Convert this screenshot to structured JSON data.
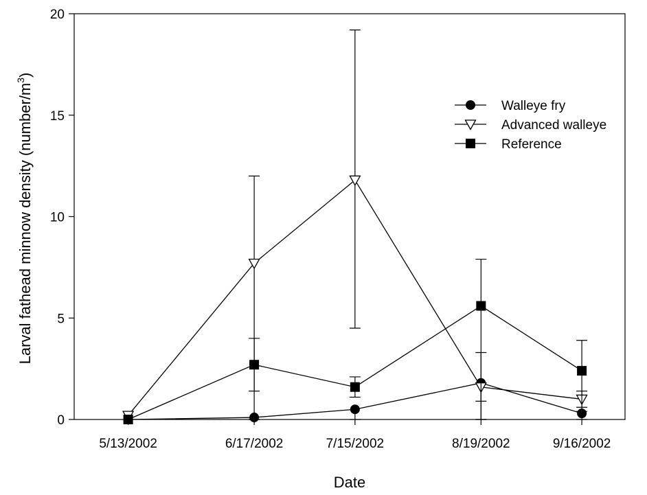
{
  "chart_data": {
    "type": "line",
    "title": "",
    "xlabel": "Date",
    "ylabel": "Larval fathead minnow density (number/m",
    "ylabel_superscript": "3",
    "ylabel_suffix": ")",
    "x": [
      "5/13/2002",
      "6/17/2002",
      "7/15/2002",
      "8/19/2002",
      "9/16/2002"
    ],
    "x_day_offsets": [
      0,
      35,
      63,
      98,
      126
    ],
    "xlim_days": [
      -15,
      138
    ],
    "ylim": [
      0,
      20
    ],
    "yticks": [
      0,
      5,
      10,
      15,
      20
    ],
    "grid": false,
    "legend_position": "top-right",
    "series": [
      {
        "name": "Walleye fry",
        "marker": "circle-filled",
        "values": [
          0.0,
          0.1,
          0.5,
          1.8,
          0.3
        ],
        "err_lower": [
          0.0,
          0.0,
          0.0,
          0.0,
          0.0
        ],
        "err_upper": [
          0.0,
          0.0,
          0.0,
          1.6,
          0.0
        ]
      },
      {
        "name": "Advanced walleye",
        "marker": "triangle-down-open",
        "values": [
          0.2,
          7.7,
          11.8,
          1.6,
          1.0
        ],
        "err_lower": [
          0.2,
          0.0,
          4.5,
          0.0,
          0.4
        ],
        "err_upper": [
          0.2,
          12.0,
          19.2,
          3.3,
          1.4
        ]
      },
      {
        "name": "Reference",
        "marker": "square-filled",
        "values": [
          0.0,
          2.7,
          1.6,
          5.6,
          2.4
        ],
        "err_lower": [
          0.0,
          1.4,
          1.1,
          0.9,
          0.6
        ],
        "err_upper": [
          0.0,
          4.0,
          2.1,
          7.9,
          3.9
        ]
      }
    ]
  }
}
